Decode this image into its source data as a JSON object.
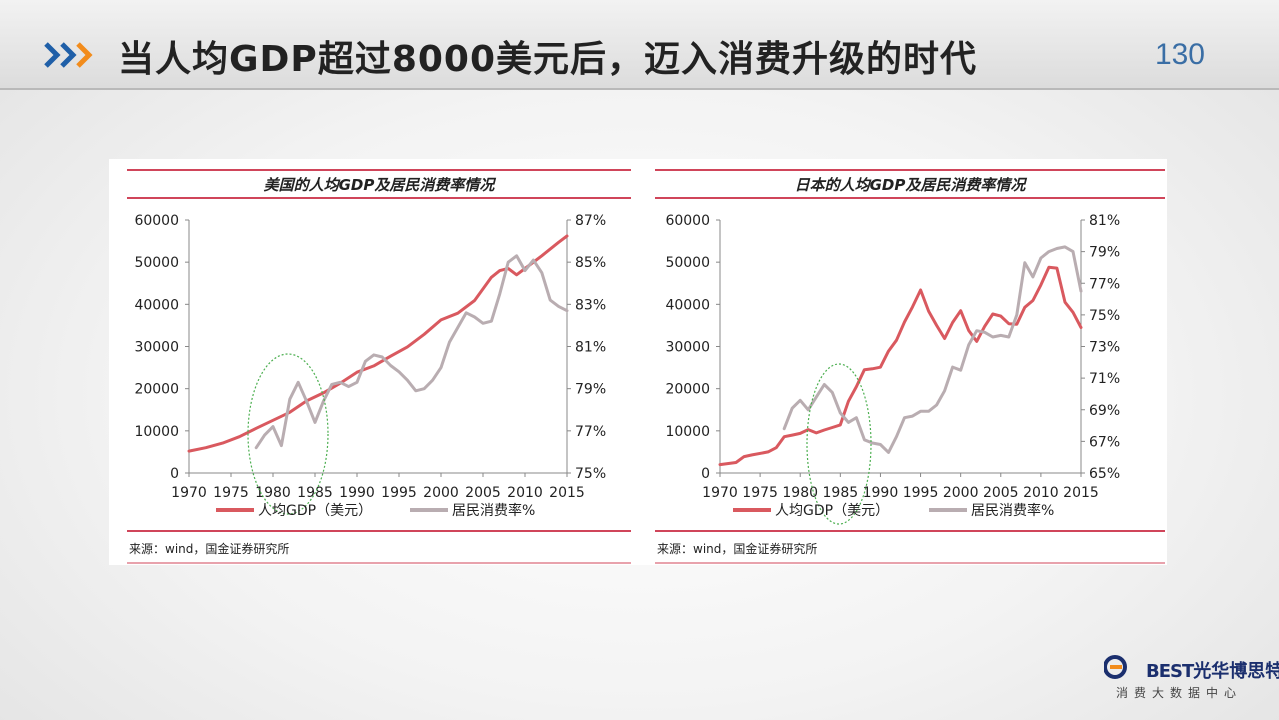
{
  "slide": {
    "title": "当人均GDP超过8000美元后，迈入消费升级的时代",
    "page_number": "130"
  },
  "colors": {
    "gdp_line": "#d9595f",
    "consumption_line": "#b9adb1",
    "rule": "#d0455a",
    "chevron_blue": "#1f5fa8",
    "chevron_orange": "#f28c1c",
    "highlight_ellipse": "#4caf50"
  },
  "logo": {
    "mark": "BEST",
    "name": "光华博思特",
    "subtitle": "消费大数据中心"
  },
  "chart_data": [
    {
      "type": "line",
      "title": "美国的人均GDP及居民消费率情况",
      "source": "来源：wind，国金证券研究所",
      "x_ticks": [
        "1970",
        "1975",
        "1980",
        "1985",
        "1990",
        "1995",
        "2000",
        "2005",
        "2010",
        "2015"
      ],
      "xlim": [
        1970,
        2015
      ],
      "y_left": {
        "ticks": [
          "0",
          "10000",
          "20000",
          "30000",
          "40000",
          "50000",
          "60000"
        ],
        "lim": [
          0,
          60000
        ]
      },
      "y_right": {
        "ticks": [
          "75%",
          "77%",
          "79%",
          "81%",
          "83%",
          "85%",
          "87%"
        ],
        "lim": [
          75,
          87
        ]
      },
      "series": [
        {
          "name": "人均GDP（美元）",
          "axis": "left",
          "x": [
            1970,
            1972,
            1974,
            1976,
            1978,
            1980,
            1982,
            1984,
            1986,
            1988,
            1990,
            1992,
            1994,
            1996,
            1998,
            2000,
            2002,
            2004,
            2006,
            2007,
            2008,
            2009,
            2010,
            2012,
            2014,
            2015
          ],
          "y": [
            5200,
            6000,
            7100,
            8600,
            10600,
            12500,
            14400,
            17100,
            19000,
            21300,
            23900,
            25400,
            27700,
            29900,
            32900,
            36300,
            37900,
            40900,
            46400,
            48000,
            48500,
            47000,
            48500,
            51500,
            54700,
            56200
          ]
        },
        {
          "name": "居民消费率%",
          "axis": "right",
          "x": [
            1978,
            1979,
            1980,
            1981,
            1982,
            1983,
            1984,
            1985,
            1986,
            1987,
            1988,
            1989,
            1990,
            1991,
            1992,
            1993,
            1994,
            1995,
            1996,
            1997,
            1998,
            1999,
            2000,
            2001,
            2002,
            2003,
            2004,
            2005,
            2006,
            2007,
            2008,
            2009,
            2010,
            2011,
            2012,
            2013,
            2014,
            2015
          ],
          "y": [
            76.2,
            76.8,
            77.2,
            76.3,
            78.5,
            79.3,
            78.4,
            77.4,
            78.4,
            79.2,
            79.3,
            79.1,
            79.3,
            80.3,
            80.6,
            80.5,
            80.1,
            79.8,
            79.4,
            78.9,
            79.0,
            79.4,
            80.0,
            81.2,
            81.9,
            82.6,
            82.4,
            82.1,
            82.2,
            83.5,
            85.0,
            85.3,
            84.6,
            85.1,
            84.5,
            83.2,
            82.9,
            82.7
          ]
        }
      ]
    },
    {
      "type": "line",
      "title": "日本的人均GDP及居民消费率情况",
      "source": "来源：wind，国金证券研究所",
      "x_ticks": [
        "1970",
        "1975",
        "1980",
        "1985",
        "1990",
        "1995",
        "2000",
        "2005",
        "2010",
        "2015"
      ],
      "xlim": [
        1970,
        2015
      ],
      "y_left": {
        "ticks": [
          "0",
          "10000",
          "20000",
          "30000",
          "40000",
          "50000",
          "60000"
        ],
        "lim": [
          0,
          60000
        ]
      },
      "y_right": {
        "ticks": [
          "65%",
          "67%",
          "69%",
          "71%",
          "73%",
          "75%",
          "77%",
          "79%",
          "81%"
        ],
        "lim": [
          65,
          81
        ]
      },
      "series": [
        {
          "name": "人均GDP（美元）",
          "axis": "left",
          "x": [
            1970,
            1972,
            1973,
            1974,
            1976,
            1977,
            1978,
            1979,
            1980,
            1981,
            1982,
            1983,
            1984,
            1985,
            1986,
            1987,
            1988,
            1989,
            1990,
            1991,
            1992,
            1993,
            1994,
            1995,
            1996,
            1997,
            1998,
            1999,
            2000,
            2001,
            2002,
            2003,
            2004,
            2005,
            2006,
            2007,
            2008,
            2009,
            2010,
            2011,
            2012,
            2013,
            2014,
            2015
          ],
          "y": [
            2000,
            2500,
            3900,
            4300,
            5000,
            6000,
            8600,
            9000,
            9400,
            10300,
            9500,
            10200,
            10800,
            11400,
            17000,
            20500,
            24500,
            24700,
            25100,
            28900,
            31500,
            35800,
            39400,
            43400,
            38400,
            35000,
            31900,
            35700,
            38500,
            33800,
            31200,
            34800,
            37700,
            37200,
            35400,
            35300,
            39300,
            40900,
            44600,
            48800,
            48600,
            40500,
            38100,
            34500
          ]
        },
        {
          "name": "居民消费率%",
          "axis": "right",
          "x": [
            1978,
            1979,
            1980,
            1981,
            1982,
            1983,
            1984,
            1985,
            1986,
            1987,
            1988,
            1989,
            1990,
            1991,
            1992,
            1993,
            1994,
            1995,
            1996,
            1997,
            1998,
            1999,
            2000,
            2001,
            2002,
            2003,
            2004,
            2005,
            2006,
            2007,
            2008,
            2009,
            2010,
            2011,
            2012,
            2013,
            2014,
            2015
          ],
          "y": [
            67.8,
            69.1,
            69.6,
            69.0,
            69.8,
            70.6,
            70.1,
            68.8,
            68.2,
            68.5,
            67.1,
            66.9,
            66.8,
            66.3,
            67.3,
            68.5,
            68.6,
            68.9,
            68.9,
            69.3,
            70.2,
            71.7,
            71.5,
            73.1,
            74.0,
            73.9,
            73.6,
            73.7,
            73.6,
            75.0,
            78.3,
            77.4,
            78.6,
            79.0,
            79.2,
            79.3,
            79.0,
            76.5
          ]
        }
      ]
    }
  ]
}
